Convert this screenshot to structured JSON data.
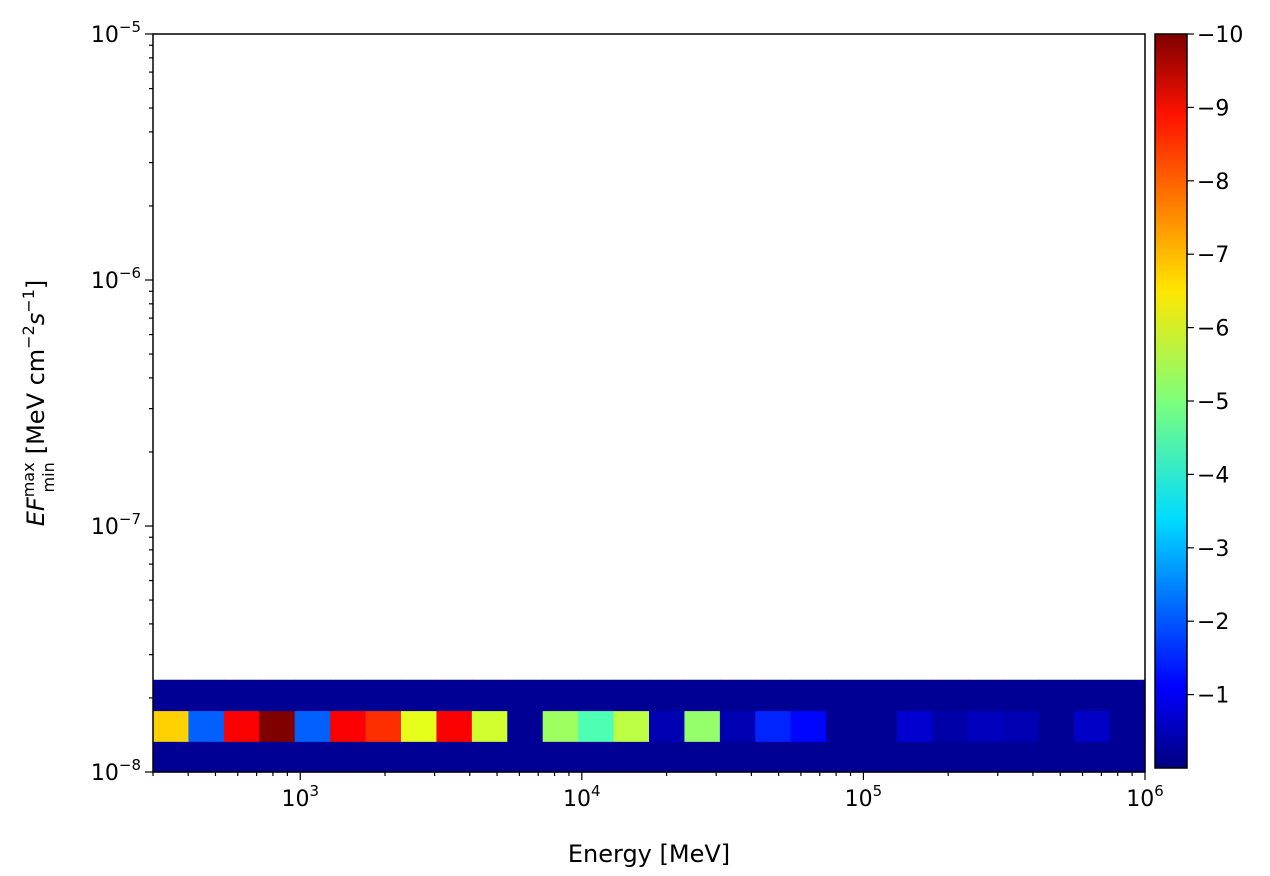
{
  "chart_data": {
    "type": "heatmap",
    "title": "",
    "xlabel": "Energy [MeV]",
    "ylabel": {
      "base": "EF",
      "sup": "max",
      "sub": "min",
      "units": "[MeV cm",
      "exp1": "−2",
      "s": "s",
      "exp2": "−1",
      "close": "]"
    },
    "x_scale": "log",
    "y_scale": "log",
    "xlim": [
      300,
      1000000
    ],
    "ylim": [
      1e-08,
      1e-05
    ],
    "x_ticks": [
      {
        "value": 1000,
        "base": "10",
        "exp": "3"
      },
      {
        "value": 10000,
        "base": "10",
        "exp": "4"
      },
      {
        "value": 100000,
        "base": "10",
        "exp": "5"
      },
      {
        "value": 1000000,
        "base": "10",
        "exp": "6"
      }
    ],
    "y_ticks": [
      {
        "value": 1e-08,
        "base": "10",
        "exp": "−8"
      },
      {
        "value": 1e-07,
        "base": "10",
        "exp": "−7"
      },
      {
        "value": 1e-06,
        "base": "10",
        "exp": "−6"
      },
      {
        "value": 1e-05,
        "base": "10",
        "exp": "−5"
      }
    ],
    "colorbar": {
      "range": [
        -10,
        0
      ],
      "ticks": [
        {
          "value": -10,
          "label": "−10"
        },
        {
          "value": -9,
          "label": "−9"
        },
        {
          "value": -8,
          "label": "−8"
        },
        {
          "value": -7,
          "label": "−7"
        },
        {
          "value": -6,
          "label": "−6"
        },
        {
          "value": -5,
          "label": "−5"
        },
        {
          "value": -4,
          "label": "−4"
        },
        {
          "value": -3,
          "label": "−3"
        },
        {
          "value": -2,
          "label": "−2"
        },
        {
          "value": -1,
          "label": "−1"
        }
      ],
      "colormap": "jet (reversed: −10 dark red, 0 dark blue)"
    },
    "n_columns": 28,
    "n_rows": 24,
    "cells": [
      [
        0,
        0,
        -0.2,
        0,
        0.6
      ],
      [
        1,
        0,
        -0.2,
        0,
        0.6
      ],
      [
        2,
        0,
        -0.2,
        0,
        0.6
      ],
      [
        3,
        0,
        -0.2,
        0,
        0.6
      ],
      [
        4,
        0,
        -0.2,
        0,
        0.6
      ],
      [
        5,
        0,
        -0.2,
        0,
        0.6
      ],
      [
        6,
        0,
        -0.2,
        0,
        0.6
      ],
      [
        7,
        0,
        -0.2,
        0,
        0.6
      ],
      [
        8,
        0,
        -0.2,
        0,
        0.6
      ],
      [
        9,
        0,
        -0.2,
        0,
        0.6
      ],
      [
        10,
        0,
        -0.2,
        0,
        0.6
      ],
      [
        11,
        0,
        -0.2,
        0,
        0.6
      ],
      [
        12,
        0,
        -0.2,
        0,
        0.6
      ],
      [
        13,
        0,
        -0.2,
        0,
        0.6
      ],
      [
        14,
        0,
        -0.2,
        0,
        0.6
      ],
      [
        15,
        0,
        -0.2,
        0,
        0.6
      ],
      [
        16,
        0,
        -0.2,
        0,
        0.6
      ],
      [
        17,
        0,
        -0.2,
        0,
        0.6
      ],
      [
        18,
        0,
        -0.2,
        0,
        0.6
      ],
      [
        19,
        0,
        -0.2,
        0,
        0.6
      ],
      [
        20,
        0,
        -0.2,
        0,
        0.6
      ],
      [
        21,
        0,
        -0.2,
        0,
        0.6
      ],
      [
        22,
        0,
        -0.2,
        0,
        0.6
      ],
      [
        23,
        0,
        -0.2,
        0,
        0.6
      ],
      [
        24,
        0,
        -0.2,
        0,
        0.6
      ],
      [
        25,
        0,
        -0.2,
        0,
        0.6
      ],
      [
        26,
        0,
        -0.2,
        0,
        0.6
      ],
      [
        27,
        0,
        -0.2,
        0,
        0.6
      ],
      [
        0,
        1,
        -6.7,
        0,
        0.6
      ],
      [
        1,
        1,
        -2.2,
        0,
        0.6
      ],
      [
        2,
        1,
        -8.8,
        0,
        0.6
      ],
      [
        3,
        1,
        -10,
        0,
        0.6
      ],
      [
        4,
        1,
        -2.2,
        0,
        0.6
      ],
      [
        5,
        1,
        -8.8,
        0,
        0.6
      ],
      [
        6,
        1,
        -8.3,
        0,
        0.6
      ],
      [
        7,
        1,
        -6,
        0,
        0.6
      ],
      [
        8,
        1,
        -8.8,
        0,
        0.6
      ],
      [
        9,
        1,
        -5.8,
        0,
        0.6
      ],
      [
        10,
        1,
        -0.2,
        0,
        0.6
      ],
      [
        11,
        1,
        -5.3,
        0,
        0.6
      ],
      [
        12,
        1,
        -4.5,
        0,
        0.6
      ],
      [
        13,
        1,
        -5.6,
        0,
        0.6
      ],
      [
        14,
        1,
        -0.5,
        0,
        0.6
      ],
      [
        15,
        1,
        -5.2,
        0,
        0.6
      ],
      [
        16,
        1,
        -0.5,
        0,
        0.6
      ],
      [
        17,
        1,
        -1.6,
        0,
        0.6
      ],
      [
        18,
        1,
        -1.3,
        0,
        0.6
      ],
      [
        19,
        1,
        -0.2,
        0,
        0.6
      ],
      [
        20,
        1,
        -0.2,
        0,
        0.6
      ],
      [
        21,
        1,
        -0.8,
        0,
        0.6
      ],
      [
        22,
        1,
        -0.4,
        0,
        0.6
      ],
      [
        23,
        1,
        -0.6,
        0,
        0.6
      ],
      [
        24,
        1,
        -0.5,
        0,
        0.6
      ],
      [
        25,
        1,
        -0.2,
        0,
        0.6
      ],
      [
        26,
        1,
        -0.7,
        0,
        0.6
      ],
      [
        27,
        1,
        -0.2,
        0,
        0.6
      ],
      [
        0,
        2,
        -0.2,
        0,
        0.6
      ],
      [
        1,
        2,
        -0.2,
        0,
        0.6
      ],
      [
        2,
        2,
        -0.2,
        0,
        0.6
      ],
      [
        3,
        2,
        -0.2,
        0,
        0.6
      ],
      [
        4,
        2,
        -0.2,
        0,
        0.6
      ],
      [
        5,
        2,
        -0.2,
        0,
        0.6
      ],
      [
        6,
        2,
        -0.2,
        0,
        0.6
      ],
      [
        7,
        2,
        -0.2,
        0,
        0.6
      ],
      [
        8,
        2,
        -0.2,
        0,
        0.6
      ],
      [
        9,
        2,
        -0.2,
        0,
        0.6
      ],
      [
        10,
        2,
        -0.2,
        0,
        0.6
      ],
      [
        11,
        2,
        -0.2,
        0,
        0.6
      ],
      [
        12,
        2,
        -0.2,
        0,
        0.6
      ],
      [
        13,
        2,
        -0.2,
        0,
        0.6
      ],
      [
        14,
        2,
        -0.2,
        0,
        0.6
      ],
      [
        15,
        2,
        -0.2,
        0,
        0.6
      ],
      [
        16,
        2,
        -0.2,
        0,
        0.6
      ],
      [
        17,
        2,
        -0.2,
        0,
        0.6
      ],
      [
        18,
        2,
        -0.2,
        0,
        0.6
      ],
      [
        19,
        2,
        -0.2,
        0,
        0.6
      ],
      [
        20,
        2,
        -0.2,
        0,
        0.6
      ],
      [
        21,
        2,
        -0.2,
        0,
        0.6
      ],
      [
        22,
        2,
        -0.2,
        0,
        0.6
      ],
      [
        23,
        2,
        -0.2,
        0,
        0.6
      ],
      [
        24,
        2,
        -0.2,
        0,
        0.6
      ],
      [
        25,
        2,
        -0.2,
        0,
        0.6
      ],
      [
        26,
        2,
        -0.2,
        0,
        0.6
      ],
      [
        27,
        2,
        -0.2,
        0,
        0.6
      ]
    ],
    "grid": false,
    "legend": "none"
  }
}
